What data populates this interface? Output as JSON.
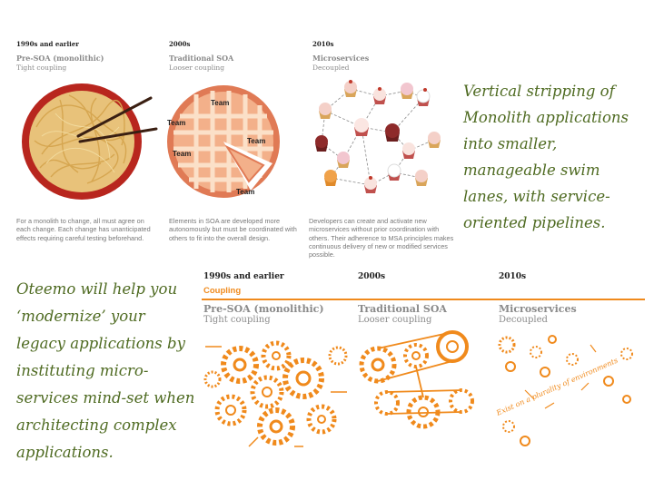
{
  "top": {
    "eras": [
      {
        "period": "1990s and earlier",
        "title": "Pre-SOA (monolithic)",
        "subtitle": "Tight coupling",
        "description": "For a monolith to change, all must agree on each change. Each change has unanticipated effects requiring careful testing beforehand."
      },
      {
        "period": "2000s",
        "title": "Traditional SOA",
        "subtitle": "Looser coupling",
        "description": "Elements in SOA are developed more autonomously but must be coordinated with others to fit into the overall design."
      },
      {
        "period": "2010s",
        "title": "Microservices",
        "subtitle": "Decoupled",
        "description": "Developers can create and activate new microservices without prior coordination with others. Their adherence to MSA principles makes continuous delivery of new or modified services possible."
      }
    ],
    "team_labels": [
      "Team",
      "Team",
      "Team",
      "Team",
      "Team"
    ]
  },
  "right_text": "Vertical stripping of Monolith applications into smaller, manageable swim lanes, with service-oriented pipelines.",
  "left_text": "Oteemo will help you ‘modernize’ your legacy applications by instituting micro-services mind-set when architecting complex applications.",
  "bottom": {
    "coupling_label": "Coupling",
    "eras": [
      {
        "period": "1990s and earlier",
        "title": "Pre-SOA (monolithic)",
        "subtitle": "Tight coupling"
      },
      {
        "period": "2000s",
        "title": "Traditional SOA",
        "subtitle": "Looser coupling"
      },
      {
        "period": "2010s",
        "title": "Microservices",
        "subtitle": "Decoupled"
      }
    ],
    "gear_text": "Exist on a plurality of environments"
  },
  "colors": {
    "accent": "#f08a1c",
    "green_text": "#4f6b22",
    "gray": "#8a8a8a"
  }
}
